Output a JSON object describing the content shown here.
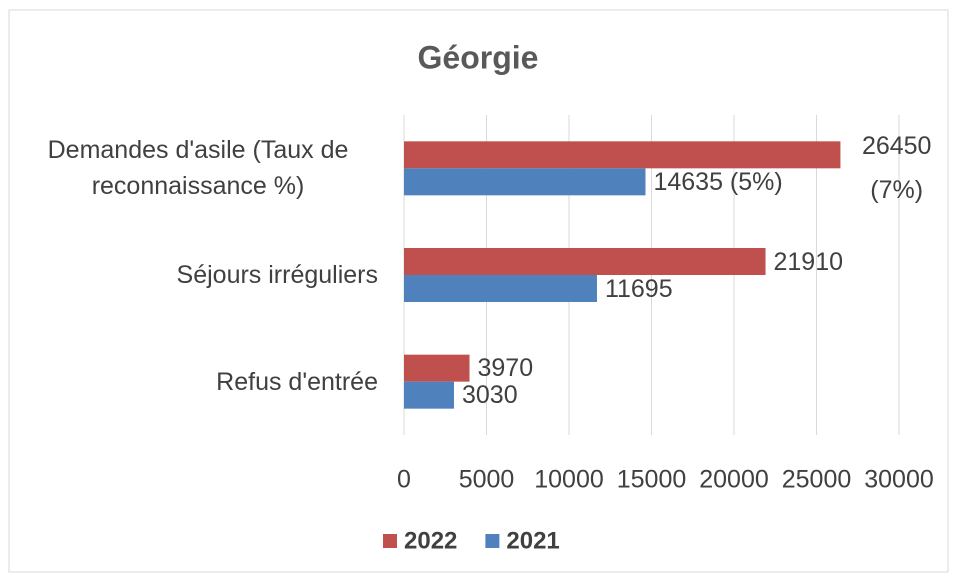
{
  "chart_data": {
    "type": "bar",
    "orientation": "horizontal",
    "title": "Géorgie",
    "categories": [
      "Demandes d'asile (Taux de reconnaissance %)",
      "Séjours irréguliers",
      "Refus d'entrée"
    ],
    "series": [
      {
        "name": "2022",
        "color": "#c0504d",
        "values": [
          26450,
          21910,
          3970
        ],
        "value_labels": [
          "26450 (7%)",
          "21910",
          "3970"
        ]
      },
      {
        "name": "2021",
        "color": "#4f81bd",
        "values": [
          14635,
          11695,
          3030
        ],
        "value_labels": [
          "14635 (5%)",
          "11695",
          "3030"
        ]
      }
    ],
    "xlim": [
      0,
      30000
    ],
    "xticks": [
      0,
      5000,
      10000,
      15000,
      20000,
      25000,
      30000
    ],
    "grid": true,
    "legend": "bottom"
  }
}
